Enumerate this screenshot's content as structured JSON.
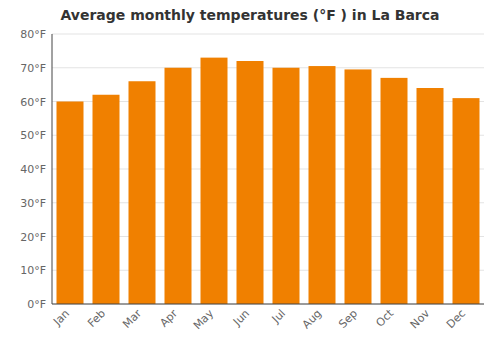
{
  "chart_data": {
    "type": "bar",
    "title": "Average monthly temperatures (°F ) in La Barca",
    "categories": [
      "Jan",
      "Feb",
      "Mar",
      "Apr",
      "May",
      "Jun",
      "Jul",
      "Aug",
      "Sep",
      "Oct",
      "Nov",
      "Dec"
    ],
    "values": [
      60,
      62,
      66,
      70,
      73,
      72,
      70,
      70.5,
      69.5,
      67,
      64,
      61
    ],
    "color": "#F08000",
    "ylim": [
      0,
      80
    ],
    "yticks": [
      {
        "value": 0,
        "label": "0°F"
      },
      {
        "value": 10,
        "label": "10°F"
      },
      {
        "value": 20,
        "label": "20°F"
      },
      {
        "value": 30,
        "label": "30°F"
      },
      {
        "value": 40,
        "label": "40°F"
      },
      {
        "value": 50,
        "label": "50°F"
      },
      {
        "value": 60,
        "label": "60°F"
      },
      {
        "value": 70,
        "label": "70°F"
      },
      {
        "value": 80,
        "label": "80°F"
      }
    ],
    "grid": true
  }
}
